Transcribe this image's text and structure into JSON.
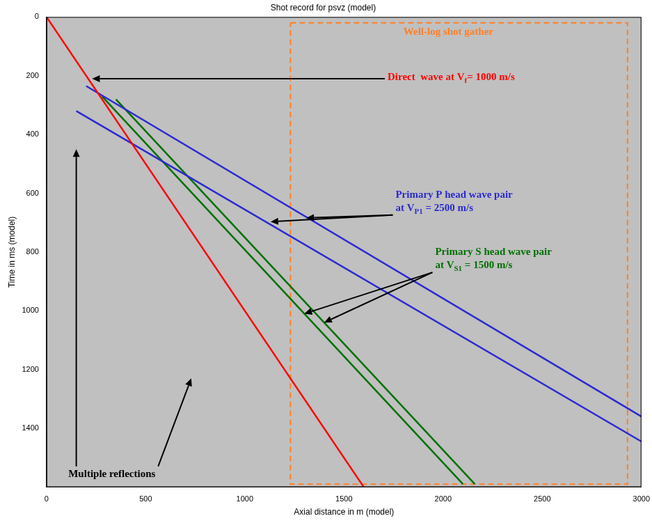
{
  "chart_data": {
    "type": "line",
    "title": "Shot record for psvz (model)",
    "x_label": "Axial distance in m (model)",
    "y_label": "Time in ms (model)",
    "xlim": [
      0,
      3000
    ],
    "xticks": [
      0,
      500,
      1000,
      1500,
      2000,
      2500,
      3000
    ],
    "ylim": [
      1600,
      0
    ],
    "yticks": [
      0,
      200,
      400,
      600,
      800,
      1000,
      1200,
      1400
    ],
    "grid": false,
    "series": [
      {
        "color": "#ff0000",
        "line_style": "solid",
        "points": [
          [
            0,
            0
          ],
          [
            1600,
            1600
          ]
        ]
      },
      {
        "color": "#2a2ad0",
        "line_style": "solid",
        "points": [
          [
            200,
            235
          ],
          [
            3000,
            1360
          ]
        ]
      },
      {
        "color": "#2a2ad0",
        "line_style": "solid",
        "points": [
          [
            150,
            320
          ],
          [
            3000,
            1445
          ]
        ]
      },
      {
        "color": "#007000",
        "line_style": "solid",
        "points": [
          [
            280,
            270
          ],
          [
            2100,
            1590
          ]
        ]
      },
      {
        "color": "#007000",
        "line_style": "solid",
        "points": [
          [
            350,
            280
          ],
          [
            2160,
            1590
          ]
        ]
      },
      {
        "color": "#ff7f27",
        "line_style": "dashed",
        "points": [
          [
            1230,
            20
          ],
          [
            2930,
            20
          ],
          [
            2930,
            1590
          ],
          [
            1230,
            1590
          ],
          [
            1230,
            20
          ]
        ]
      }
    ],
    "annotations": [
      {
        "lines": [
          [
            "Well-log shot gather"
          ]
        ],
        "color": "#ff7f27",
        "x": 1800,
        "y": 60,
        "arrows": []
      },
      {
        "lines": [
          [
            "Direct  wave at V",
            {
              "sub": "f"
            },
            "= 1000 m/s"
          ]
        ],
        "color": "#ff0000",
        "x": 1720,
        "y": 215,
        "arrows": [
          [
            230,
            210
          ]
        ]
      },
      {
        "lines": [
          [
            "Primary P head wave pair"
          ],
          [
            "at V",
            {
              "sub": "P1"
            },
            " = 2500 m/s"
          ]
        ],
        "color": "#2a2ad0",
        "x": 1760,
        "y": 615,
        "arrows": [
          [
            1130,
            697
          ],
          [
            1310,
            684
          ]
        ]
      },
      {
        "lines": [
          [
            "Primary S head wave pair"
          ],
          [
            "at V",
            {
              "sub": "S1"
            },
            " = 1500 m/s"
          ]
        ],
        "color": "#007000",
        "x": 1960,
        "y": 810,
        "arrows": [
          [
            1300,
            1010
          ],
          [
            1400,
            1040
          ]
        ]
      },
      {
        "lines": [
          [
            "Multiple reflections"
          ]
        ],
        "color": "#000000",
        "x": 110,
        "y": 1565,
        "arrows": [
          [
            150,
            450
          ],
          [
            730,
            1230
          ]
        ]
      }
    ]
  }
}
